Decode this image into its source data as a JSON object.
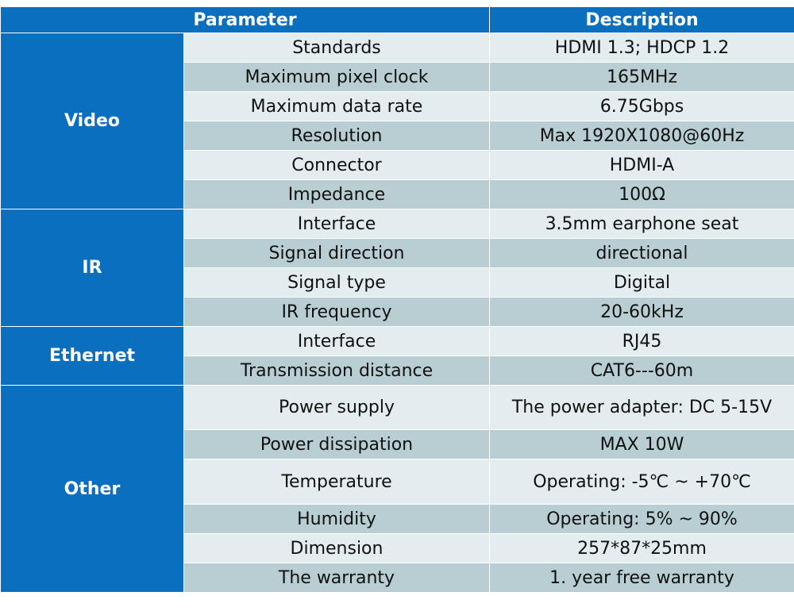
{
  "headers": {
    "parameter": "Parameter",
    "description": "Description"
  },
  "groups": {
    "video": "Video",
    "ir": "IR",
    "ethernet": "Ethernet",
    "other": "Other"
  },
  "rows": [
    {
      "param": "Standards",
      "desc": "HDMI 1.3; HDCP 1.2"
    },
    {
      "param": "Maximum pixel clock",
      "desc": "165MHz"
    },
    {
      "param": "Maximum data rate",
      "desc": "6.75Gbps"
    },
    {
      "param": "Resolution",
      "desc": "Max 1920X1080@60Hz"
    },
    {
      "param": "Connector",
      "desc": "HDMI-A"
    },
    {
      "param": "Impedance",
      "desc": "100Ω"
    },
    {
      "param": "Interface",
      "desc": "3.5mm earphone seat"
    },
    {
      "param": "Signal direction",
      "desc": "directional"
    },
    {
      "param": "Signal type",
      "desc": "Digital"
    },
    {
      "param": "IR frequency",
      "desc": "20-60kHz"
    },
    {
      "param": "Interface",
      "desc": "RJ45"
    },
    {
      "param": "Transmission distance",
      "desc": "CAT6---60m"
    },
    {
      "param": "Power supply",
      "desc": "The power adapter: DC 5-15V"
    },
    {
      "param": "Power dissipation",
      "desc": "MAX 10W"
    },
    {
      "param": "Temperature",
      "desc": "Operating: -5℃ ~ +70℃"
    },
    {
      "param": "Humidity",
      "desc": "Operating: 5% ~ 90%"
    },
    {
      "param": "Dimension",
      "desc": "257*87*25mm"
    },
    {
      "param": "The warranty",
      "desc": "1.   year free warranty"
    }
  ]
}
